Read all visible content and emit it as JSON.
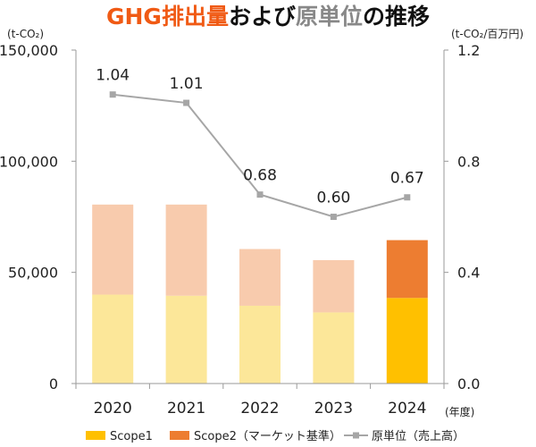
{
  "title": {
    "part1": "GHG排出量",
    "part2": "および",
    "part3": "原単位",
    "part4": "の推移",
    "color_highlight": "#F05A14",
    "color_dark": "#111111",
    "color_gray": "#888888"
  },
  "chart_data": {
    "type": "bar",
    "stacked": true,
    "categories": [
      "2020",
      "2021",
      "2022",
      "2023",
      "2024"
    ],
    "xlabel": "(年度)",
    "ylabel_left": "(t-CO₂)",
    "ylabel_right": "(t-CO₂/百万円)",
    "ylim_left": [
      0,
      150000
    ],
    "yticks_left": [
      0,
      50000,
      100000,
      150000
    ],
    "ytick_labels_left": [
      "0",
      "50,000",
      "100,000",
      "150,000"
    ],
    "ylim_right": [
      0,
      1.2
    ],
    "yticks_right": [
      0,
      0.4,
      0.8,
      1.2
    ],
    "ytick_labels_right": [
      "0.0",
      "0.4",
      "0.8",
      "1.2"
    ],
    "grid": false,
    "legend_position": "bottom",
    "series": [
      {
        "name": "Scope1",
        "kind": "bar",
        "axis": "left",
        "values": [
          40000,
          39500,
          35000,
          32000,
          38500
        ],
        "colors": [
          "#FCE799",
          "#FCE799",
          "#FCE799",
          "#FCE799",
          "#FFC000"
        ],
        "legend_color": "#FFC000"
      },
      {
        "name": "Scope2（マーケット基準）",
        "kind": "bar",
        "axis": "left",
        "values": [
          40500,
          41000,
          25500,
          23500,
          26000
        ],
        "colors": [
          "#F8CBAD",
          "#F8CBAD",
          "#F8CBAD",
          "#F8CBAD",
          "#ED7D31"
        ],
        "legend_color": "#ED7D31"
      },
      {
        "name": "原単位（売上高）",
        "kind": "line",
        "axis": "right",
        "values": [
          1.04,
          1.01,
          0.68,
          0.6,
          0.67
        ],
        "labels": [
          "1.04",
          "1.01",
          "0.68",
          "0.60",
          "0.67"
        ],
        "color": "#A6A6A6"
      }
    ]
  }
}
